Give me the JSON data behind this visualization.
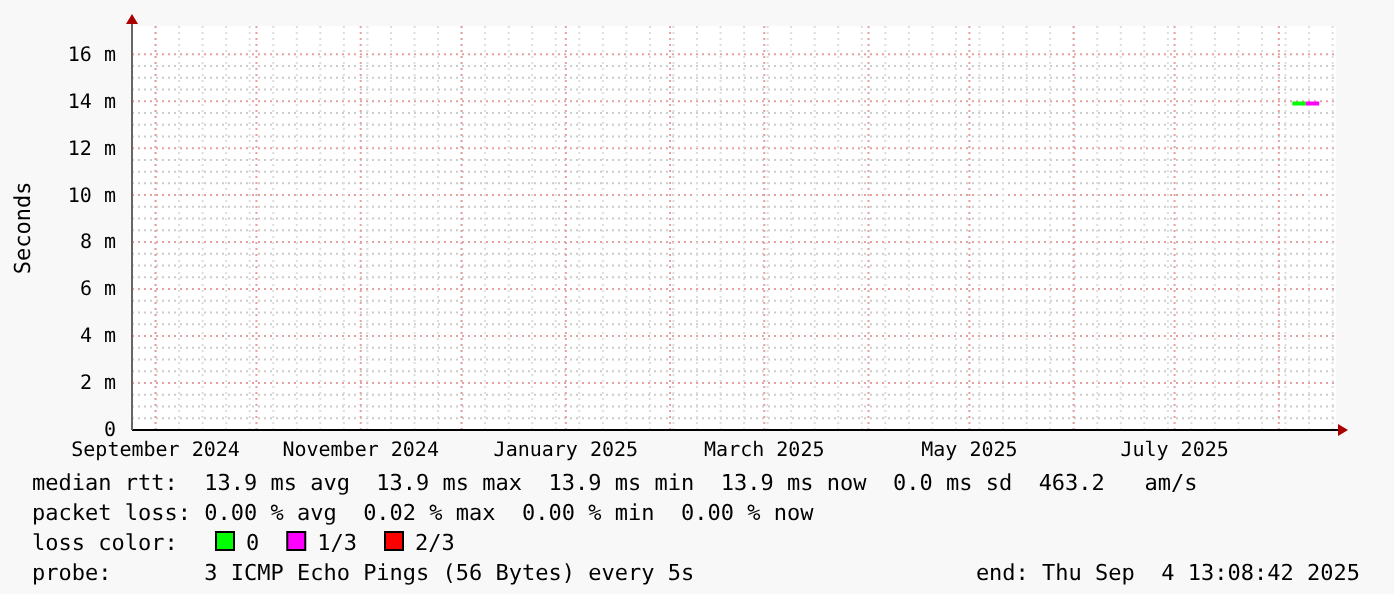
{
  "chart_data": {
    "type": "line",
    "ylabel": "Seconds",
    "legend_title": "loss color:",
    "legend": "bottom",
    "grid": true,
    "xlim": [
      "2024-08-25",
      "2025-08-18"
    ],
    "xticks": [
      {
        "value": "2024-09-01",
        "label": "September 2024"
      },
      {
        "value": "2024-11-01",
        "label": "November 2024"
      },
      {
        "value": "2025-01-01",
        "label": "January 2025"
      },
      {
        "value": "2025-03-01",
        "label": "March 2025"
      },
      {
        "value": "2025-05-01",
        "label": "May 2025"
      },
      {
        "value": "2025-07-01",
        "label": "July 2025"
      }
    ],
    "ylim": [
      0,
      17.2
    ],
    "yticks": [
      0,
      {
        "value": 2,
        "label": "2 m"
      },
      {
        "value": 4,
        "label": "4 m"
      },
      {
        "value": 6,
        "label": "6 m"
      },
      {
        "value": 8,
        "label": "8 m"
      },
      {
        "value": 10,
        "label": "10 m"
      },
      {
        "value": 12,
        "label": "12 m"
      },
      {
        "value": 14,
        "label": "14 m"
      },
      {
        "value": 16,
        "label": "16 m"
      }
    ],
    "series": [
      {
        "name": "0",
        "color": "#00ff00",
        "x": [
          "2025-08-05",
          "2025-08-09"
        ],
        "values": [
          13.9,
          13.9
        ]
      },
      {
        "name": "1/3",
        "color": "#ff00ff",
        "x": [
          "2025-08-09",
          "2025-08-13"
        ],
        "values": [
          13.9,
          13.9
        ]
      },
      {
        "name": "2/3",
        "color": "#ff0000"
      }
    ],
    "annotations": [
      "median rtt:  13.9 ms avg  13.9 ms max  13.9 ms min  13.9 ms now  0.0 ms sd  463.2   am/s",
      "packet loss: 0.00 % avg  0.02 % max  0.00 % min  0.00 % now",
      "probe:       3 ICMP Echo Pings (56 Bytes) every 5s",
      "end: Thu Sep  4 13:08:42 2025"
    ]
  }
}
